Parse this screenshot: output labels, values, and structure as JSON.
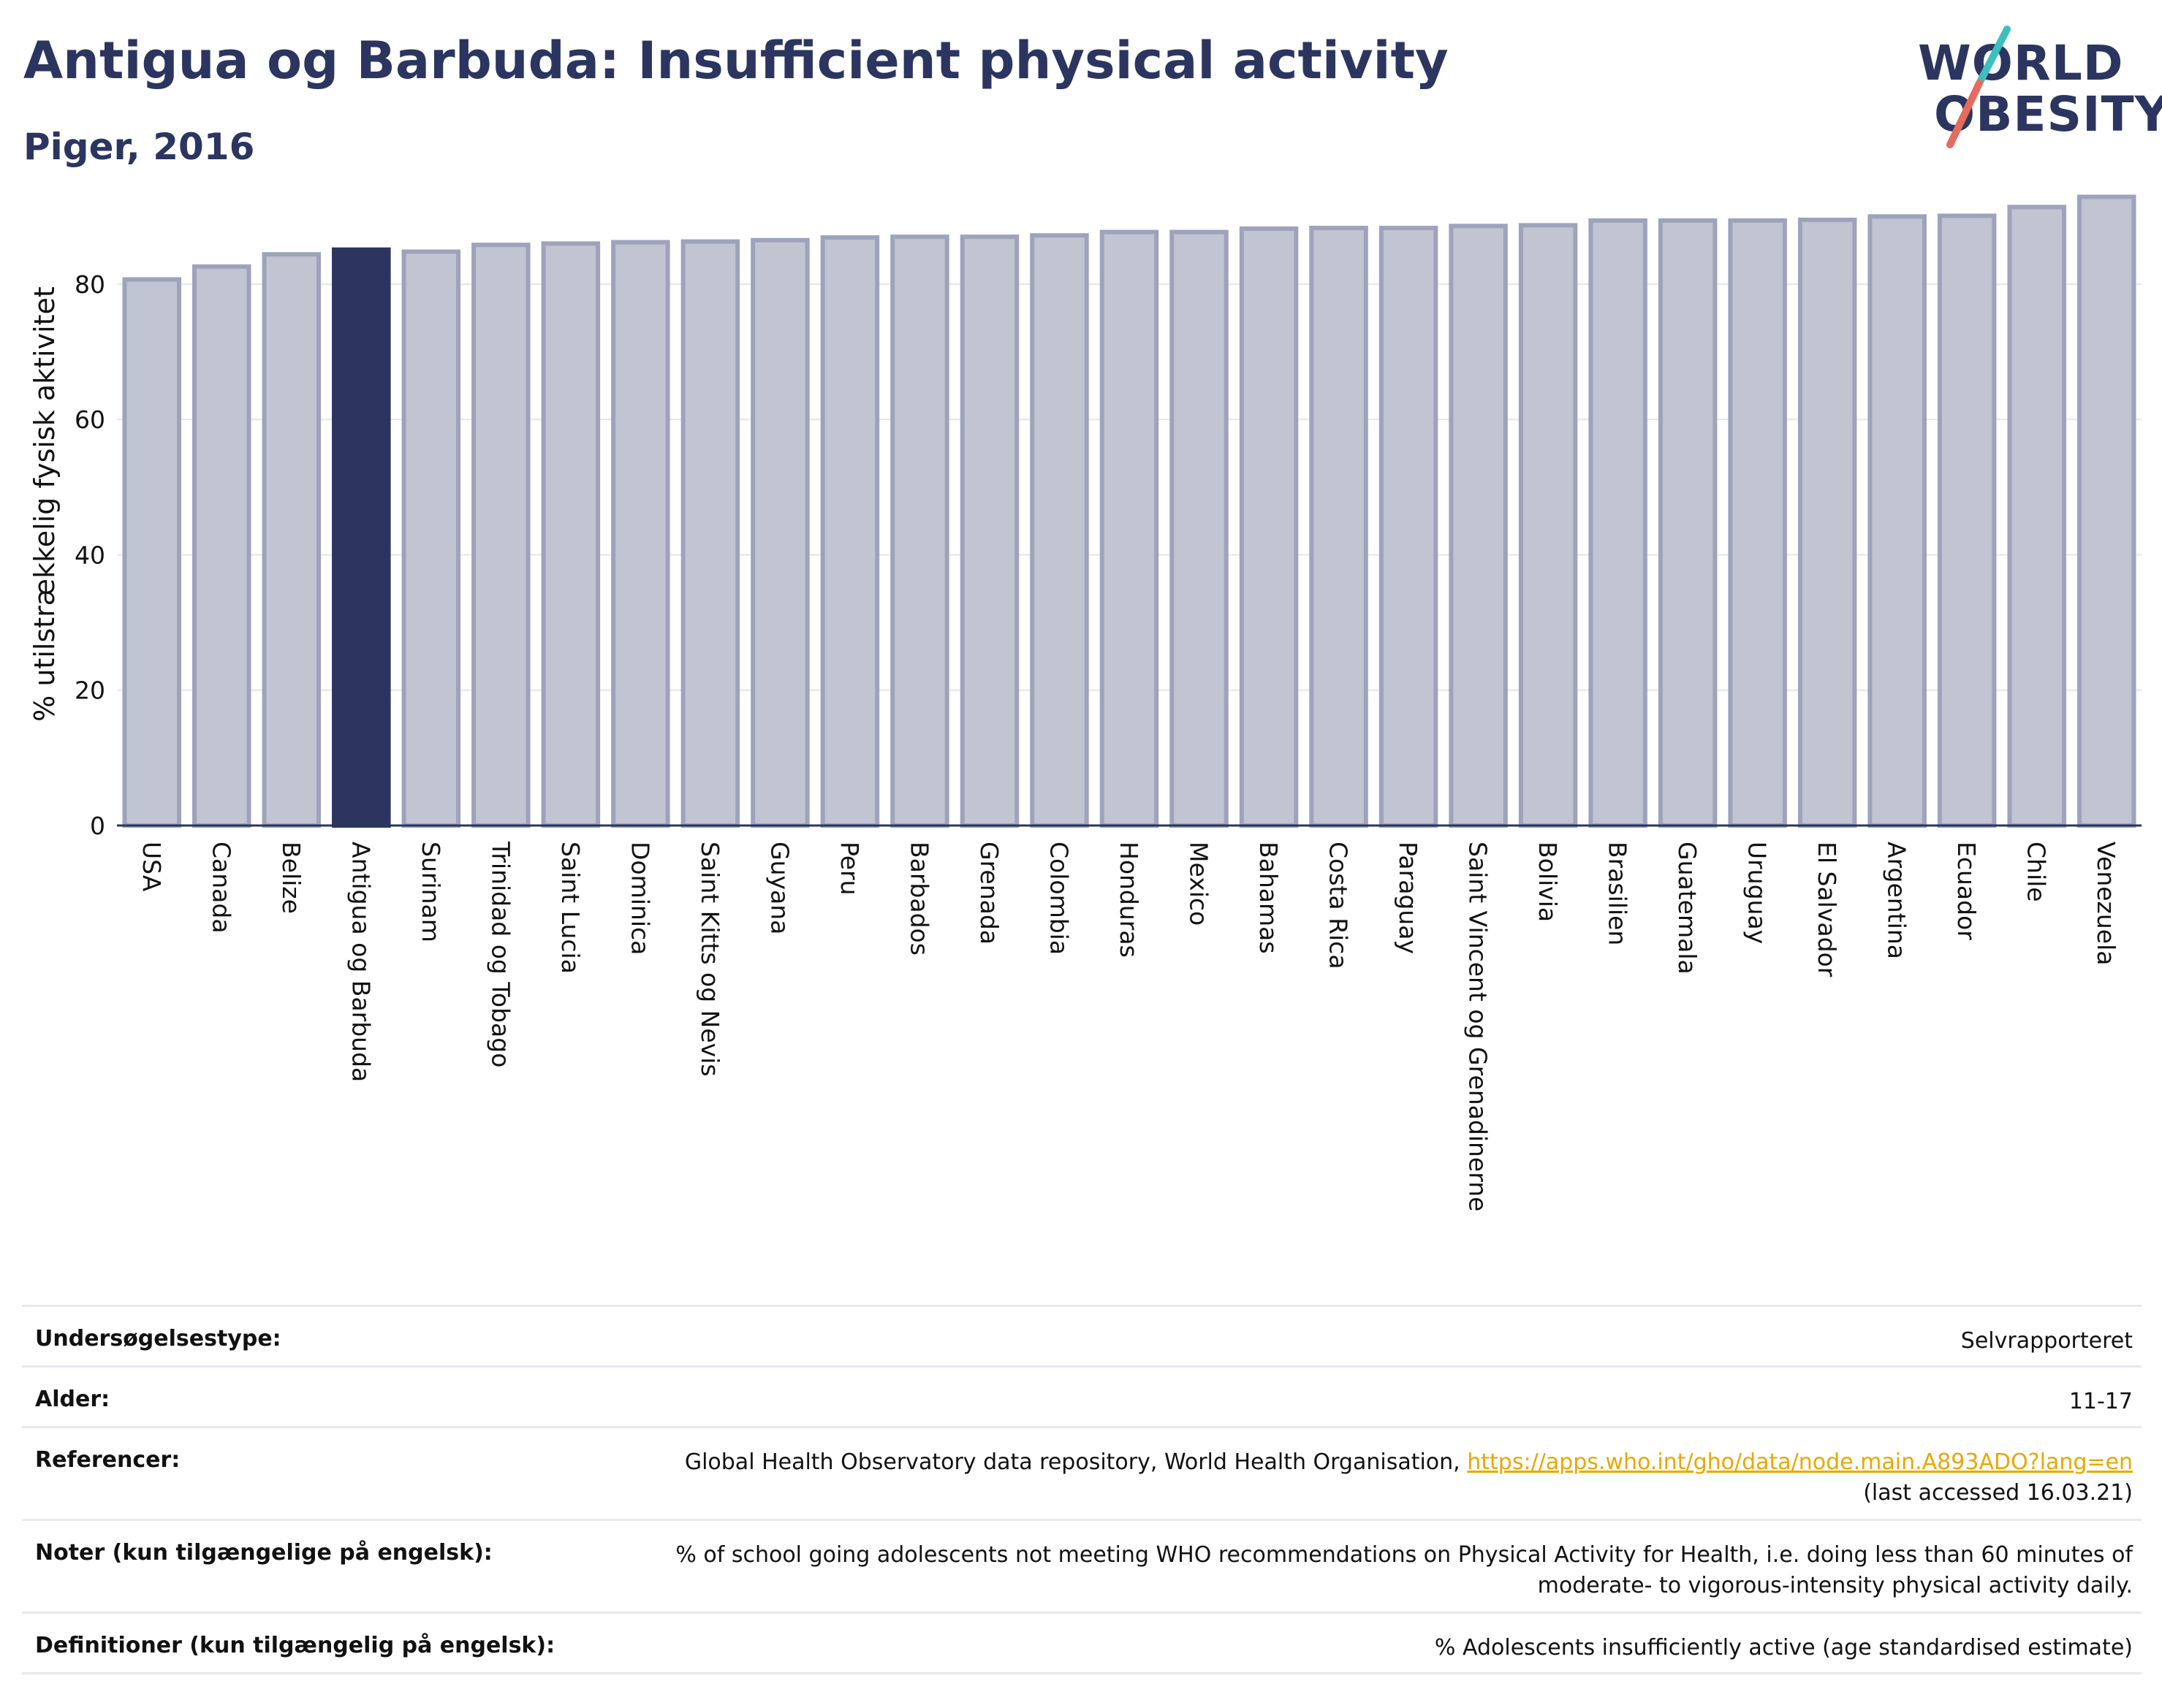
{
  "header": {
    "title": "Antigua og Barbuda: Insufficient physical activity",
    "subtitle": "Piger, 2016"
  },
  "logo": {
    "line1": "WORLD",
    "line2": "OBESITY",
    "slash_colors": [
      "#3dbfbf",
      "#e56b5d"
    ]
  },
  "colors": {
    "highlight_bar": "#2b3560",
    "other_bar_fill": "#c1c4d1",
    "other_bar_stroke": "#9ea3bc",
    "title": "#2b3560",
    "link": "#e9a800"
  },
  "chart_data": {
    "type": "bar",
    "title": "Antigua og Barbuda: Insufficient physical activity",
    "subtitle": "Piger, 2016",
    "xlabel": "",
    "ylabel": "% utilstrækkelig fysisk aktivitet",
    "ylim": [
      0,
      95
    ],
    "yticks": [
      0,
      20,
      40,
      60,
      80
    ],
    "grid": true,
    "highlight": "Antigua og Barbuda",
    "categories": [
      "USA",
      "Canada",
      "Belize",
      "Antigua og Barbuda",
      "Surinam",
      "Trinidad og Tobago",
      "Saint Lucia",
      "Dominica",
      "Saint Kitts og Nevis",
      "Guyana",
      "Peru",
      "Barbados",
      "Grenada",
      "Colombia",
      "Honduras",
      "Mexico",
      "Bahamas",
      "Costa Rica",
      "Paraguay",
      "Saint Vincent og Grenadinerne",
      "Bolivia",
      "Brasilien",
      "Guatemala",
      "Uruguay",
      "El Salvador",
      "Argentina",
      "Ecuador",
      "Chile",
      "Venezuela"
    ],
    "values": [
      80.7,
      82.6,
      84.4,
      85.1,
      84.8,
      85.8,
      86.0,
      86.2,
      86.3,
      86.5,
      86.9,
      87.0,
      87.0,
      87.2,
      87.7,
      87.7,
      88.2,
      88.3,
      88.3,
      88.6,
      88.7,
      89.4,
      89.4,
      89.4,
      89.5,
      90.0,
      90.1,
      91.4,
      92.9
    ]
  },
  "table": {
    "rows": [
      {
        "label": "Undersøgelsestype:",
        "value": "Selvrapporteret"
      },
      {
        "label": "Alder:",
        "value": "11-17"
      },
      {
        "label": "Referencer:",
        "value": "Global Health Observatory data repository, World Health Organisation,",
        "link": "https://apps.who.int/gho/data/node.main.A893ADO?lang=en",
        "value2": "(last accessed 16.03.21)"
      },
      {
        "label": "Noter (kun tilgængelige på engelsk):",
        "value": "% of school going adolescents not meeting WHO recommendations on Physical Activity for Health, i.e. doing less than 60 minutes of moderate- to vigorous-intensity physical activity daily."
      },
      {
        "label": "Definitioner (kun tilgængelig på engelsk):",
        "value": "% Adolescents insufficiently active (age standardised estimate)"
      }
    ]
  }
}
